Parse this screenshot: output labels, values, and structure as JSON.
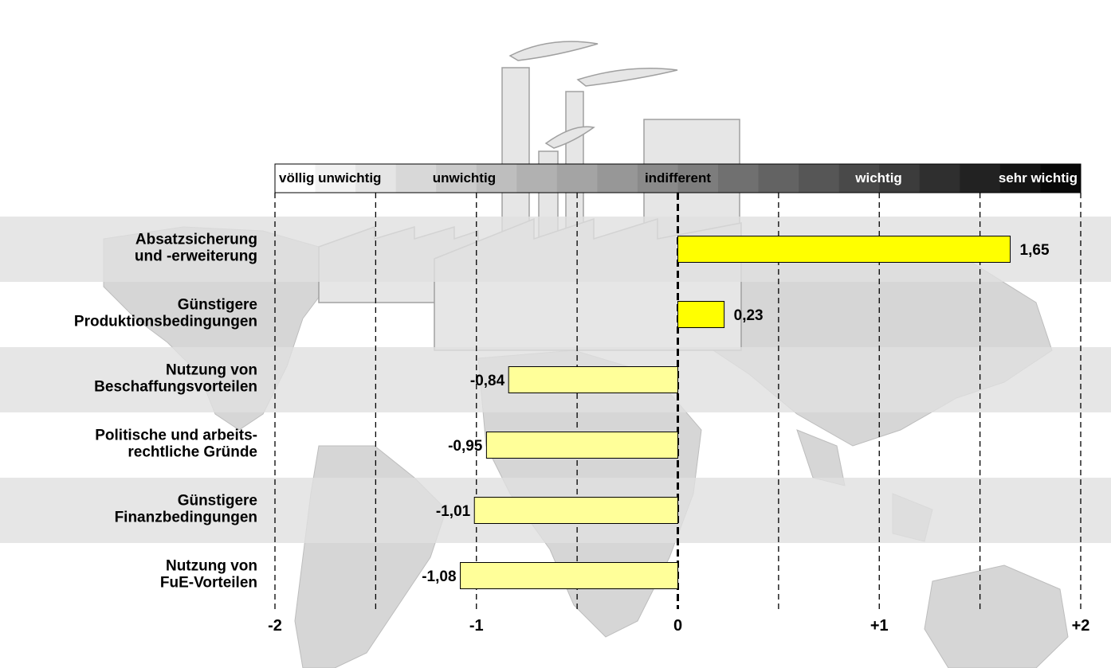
{
  "chart_data": {
    "type": "bar",
    "orientation": "horizontal",
    "categories": [
      [
        "Absatzsicherung",
        "und -erweiterung"
      ],
      [
        "Günstigere",
        "Produktionsbedingungen"
      ],
      [
        "Nutzung von",
        "Beschaffungsvorteilen"
      ],
      [
        "Politische und arbeits-",
        "rechtliche Gründe"
      ],
      [
        "Günstigere",
        "Finanzbedingungen"
      ],
      [
        "Nutzung von",
        "FuE-Vorteilen"
      ]
    ],
    "values": [
      1.65,
      0.23,
      -0.84,
      -0.95,
      -1.01,
      -1.08
    ],
    "value_labels": [
      "1,65",
      "0,23",
      "-0,84",
      "-0,95",
      "-1,01",
      "-1,08"
    ],
    "xlim": [
      -2,
      2
    ],
    "ticks": [
      -2,
      -1,
      0,
      1,
      2
    ],
    "tick_labels": [
      "-2",
      "-1",
      "0",
      "+1",
      "+2"
    ],
    "grid_step": 0.5,
    "scale_labels": [
      {
        "text": "völlig unwichtig",
        "at": -2
      },
      {
        "text": "unwichtig",
        "at": -1
      },
      {
        "text": "indifferent",
        "at": 0
      },
      {
        "text": "wichtig",
        "at": 1
      },
      {
        "text": "sehr wichtig",
        "at": 2
      }
    ],
    "colors": {
      "positive_bar": "#ffff00",
      "negative_bar": "#ffff99",
      "band": "#e0e0e0"
    }
  }
}
